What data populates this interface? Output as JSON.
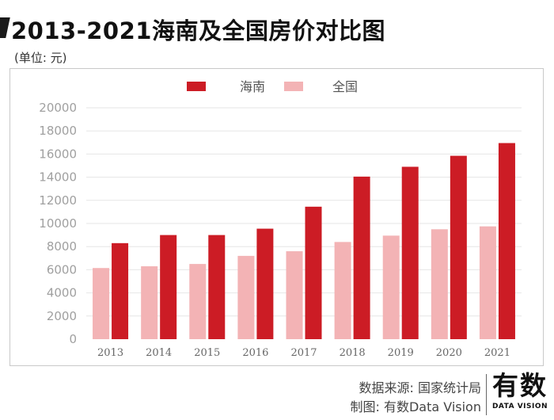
{
  "page": {
    "title": "2013-2021海南及全国房价对比图",
    "unit": "(单位: 元)",
    "source": "数据来源: 国家统计局",
    "maker": "制图: 有数Data Vision",
    "brand_cn": "有数",
    "brand_en": "DATA VISION"
  },
  "colors": {
    "hainan": "#cc1c25",
    "national": "#f3b3b5",
    "grid": "#e6e6e6",
    "tick": "#a0a0a0",
    "legend_text": "#555555"
  },
  "chart_data": {
    "type": "bar",
    "title": "2013-2021海南及全国房价对比图",
    "xlabel": "",
    "ylabel": "单位: 元",
    "ylim": [
      0,
      20000
    ],
    "yticks": [
      0,
      2000,
      4000,
      6000,
      8000,
      10000,
      12000,
      14000,
      16000,
      18000,
      20000
    ],
    "grid": true,
    "legend_position": "top-center",
    "categories": [
      "2013",
      "2014",
      "2015",
      "2016",
      "2017",
      "2018",
      "2019",
      "2020",
      "2021"
    ],
    "series": [
      {
        "name": "海南",
        "values": [
          8300,
          9000,
          9000,
          9550,
          11450,
          14050,
          14900,
          15850,
          16950
        ]
      },
      {
        "name": "全国",
        "values": [
          6150,
          6300,
          6500,
          7200,
          7600,
          8400,
          8950,
          9500,
          9750
        ]
      }
    ]
  }
}
